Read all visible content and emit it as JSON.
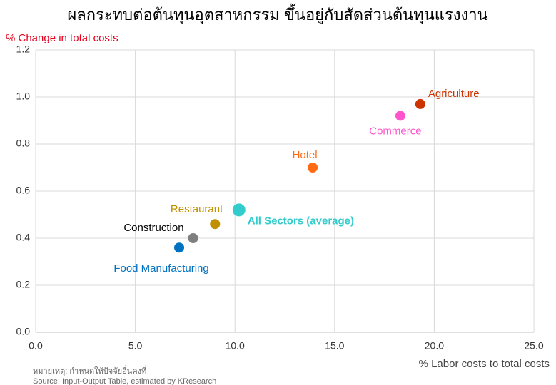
{
  "chart_data": {
    "type": "scatter",
    "title": "ผลกระทบต่อต้นทุนอุตสาหกรรม ขึ้นอยู่กับสัดส่วนต้นทุนแรงงาน",
    "y_label": "% Change in total costs",
    "x_label": "% Labor costs to total costs",
    "notes": [
      "หมายเหตุ: กำหนดให้ปัจจัยอื่นคงที่",
      "Source: Input-Output Table, estimated by KResearch"
    ],
    "series": [
      {
        "name": "Food Manufacturing",
        "color": "#0070c0",
        "x": [
          7.2
        ],
        "values": [
          0.36
        ]
      },
      {
        "name": "Construction",
        "color": "#7f7f7f",
        "x": [
          7.9
        ],
        "values": [
          0.4
        ]
      },
      {
        "name": "Restaurant",
        "color": "#c09000",
        "x": [
          9.0
        ],
        "values": [
          0.46
        ]
      },
      {
        "name": "All Sectors (average)",
        "color": "#33cccc",
        "x": [
          10.2
        ],
        "values": [
          0.52
        ]
      },
      {
        "name": "Hotel",
        "color": "#ff6a13",
        "x": [
          13.9
        ],
        "values": [
          0.7
        ]
      },
      {
        "name": "Commerce",
        "color": "#ff55cc",
        "x": [
          18.3
        ],
        "values": [
          0.92
        ]
      },
      {
        "name": "Agriculture",
        "color": "#cc3300",
        "x": [
          19.3
        ],
        "values": [
          0.97
        ]
      }
    ],
    "xlim": [
      0,
      25
    ],
    "xticks": [
      {
        "value": 0,
        "label": "0.0"
      },
      {
        "value": 5,
        "label": "5.0"
      },
      {
        "value": 10,
        "label": "10.0"
      },
      {
        "value": 15,
        "label": "15.0"
      },
      {
        "value": 20,
        "label": "20.0"
      },
      {
        "value": 25,
        "label": "25.0"
      }
    ],
    "ylim": [
      0,
      1.2
    ],
    "yticks": [
      {
        "value": 0,
        "label": "0.0"
      },
      {
        "value": 0.2,
        "label": "0.2"
      },
      {
        "value": 0.4,
        "label": "0.4"
      },
      {
        "value": 0.6,
        "label": "0.6"
      },
      {
        "value": 0.8,
        "label": "0.8"
      },
      {
        "value": 1.0,
        "label": "1.0"
      },
      {
        "value": 1.2,
        "label": "1.2"
      }
    ],
    "grid": true
  }
}
